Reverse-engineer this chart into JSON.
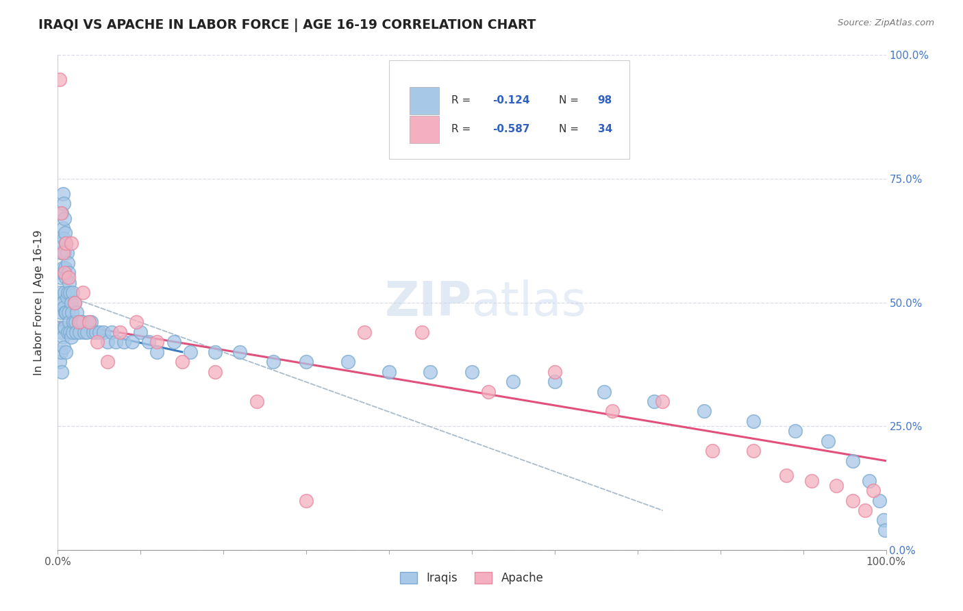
{
  "title": "IRAQI VS APACHE IN LABOR FORCE | AGE 16-19 CORRELATION CHART",
  "source_text": "Source: ZipAtlas.com",
  "ylabel": "In Labor Force | Age 16-19",
  "xlim": [
    0.0,
    1.0
  ],
  "ylim": [
    0.0,
    1.0
  ],
  "ytick_values": [
    0.0,
    0.25,
    0.5,
    0.75,
    1.0
  ],
  "ytick_labels": [
    "0.0%",
    "25.0%",
    "50.0%",
    "75.0%",
    "100.0%"
  ],
  "xtick_values": [
    0.0,
    0.1,
    0.2,
    0.3,
    0.4,
    0.5,
    0.6,
    0.7,
    0.8,
    0.9,
    1.0
  ],
  "legend_r1": "R = -0.124",
  "legend_n1": "N = 98",
  "legend_r2": "R = -0.587",
  "legend_n2": "N = 34",
  "iraqi_color": "#a8c8e8",
  "apache_color": "#f4b0c0",
  "iraqi_edge_color": "#7aaad0",
  "apache_edge_color": "#e888a0",
  "iraqi_line_color": "#3a7abf",
  "apache_line_color": "#e0507a",
  "dashed_line_color": "#aabbcc",
  "title_color": "#222222",
  "source_color": "#777777",
  "axis_label_color": "#333333",
  "tick_color": "#4477cc",
  "background_color": "#ffffff",
  "grid_color": "#d8dce8",
  "legend_r_color": "#3060c0",
  "legend_n_color": "#3060c0",
  "iraqi_x": [
    0.002,
    0.003,
    0.003,
    0.004,
    0.004,
    0.004,
    0.004,
    0.005,
    0.005,
    0.005,
    0.005,
    0.005,
    0.005,
    0.006,
    0.006,
    0.006,
    0.006,
    0.006,
    0.007,
    0.007,
    0.007,
    0.007,
    0.007,
    0.008,
    0.008,
    0.008,
    0.008,
    0.009,
    0.009,
    0.009,
    0.01,
    0.01,
    0.01,
    0.01,
    0.011,
    0.011,
    0.012,
    0.012,
    0.012,
    0.013,
    0.013,
    0.014,
    0.014,
    0.015,
    0.015,
    0.016,
    0.016,
    0.017,
    0.018,
    0.018,
    0.019,
    0.02,
    0.021,
    0.022,
    0.023,
    0.025,
    0.026,
    0.028,
    0.03,
    0.032,
    0.035,
    0.038,
    0.04,
    0.043,
    0.046,
    0.05,
    0.055,
    0.06,
    0.065,
    0.07,
    0.08,
    0.09,
    0.1,
    0.11,
    0.12,
    0.14,
    0.16,
    0.19,
    0.22,
    0.26,
    0.3,
    0.35,
    0.4,
    0.45,
    0.5,
    0.55,
    0.6,
    0.66,
    0.72,
    0.78,
    0.84,
    0.89,
    0.93,
    0.96,
    0.98,
    0.992,
    0.997,
    0.999
  ],
  "iraqi_y": [
    0.38,
    0.52,
    0.45,
    0.6,
    0.55,
    0.48,
    0.4,
    0.68,
    0.62,
    0.56,
    0.5,
    0.44,
    0.36,
    0.72,
    0.65,
    0.57,
    0.5,
    0.43,
    0.7,
    0.63,
    0.56,
    0.49,
    0.41,
    0.67,
    0.6,
    0.52,
    0.45,
    0.64,
    0.57,
    0.48,
    0.62,
    0.55,
    0.48,
    0.4,
    0.6,
    0.51,
    0.58,
    0.52,
    0.44,
    0.56,
    0.48,
    0.54,
    0.46,
    0.52,
    0.44,
    0.5,
    0.43,
    0.48,
    0.52,
    0.44,
    0.46,
    0.5,
    0.46,
    0.44,
    0.48,
    0.46,
    0.44,
    0.46,
    0.46,
    0.44,
    0.44,
    0.46,
    0.46,
    0.44,
    0.44,
    0.44,
    0.44,
    0.42,
    0.44,
    0.42,
    0.42,
    0.42,
    0.44,
    0.42,
    0.4,
    0.42,
    0.4,
    0.4,
    0.4,
    0.38,
    0.38,
    0.38,
    0.36,
    0.36,
    0.36,
    0.34,
    0.34,
    0.32,
    0.3,
    0.28,
    0.26,
    0.24,
    0.22,
    0.18,
    0.14,
    0.1,
    0.06,
    0.04
  ],
  "apache_x": [
    0.002,
    0.004,
    0.006,
    0.008,
    0.01,
    0.013,
    0.016,
    0.02,
    0.025,
    0.03,
    0.038,
    0.048,
    0.06,
    0.075,
    0.095,
    0.12,
    0.15,
    0.19,
    0.24,
    0.3,
    0.37,
    0.44,
    0.52,
    0.6,
    0.67,
    0.73,
    0.79,
    0.84,
    0.88,
    0.91,
    0.94,
    0.96,
    0.975,
    0.985
  ],
  "apache_y": [
    0.95,
    0.68,
    0.6,
    0.56,
    0.62,
    0.55,
    0.62,
    0.5,
    0.46,
    0.52,
    0.46,
    0.42,
    0.38,
    0.44,
    0.46,
    0.42,
    0.38,
    0.36,
    0.3,
    0.1,
    0.44,
    0.44,
    0.32,
    0.36,
    0.28,
    0.3,
    0.2,
    0.2,
    0.15,
    0.14,
    0.13,
    0.1,
    0.08,
    0.12
  ],
  "iraqi_trend_x": [
    0.0,
    0.15
  ],
  "iraqi_trend_y": [
    0.455,
    0.4
  ],
  "apache_trend_x": [
    0.0,
    1.0
  ],
  "apache_trend_y": [
    0.46,
    0.18
  ],
  "dashed_trend_x": [
    0.0,
    0.73
  ],
  "dashed_trend_y": [
    0.52,
    0.08
  ]
}
